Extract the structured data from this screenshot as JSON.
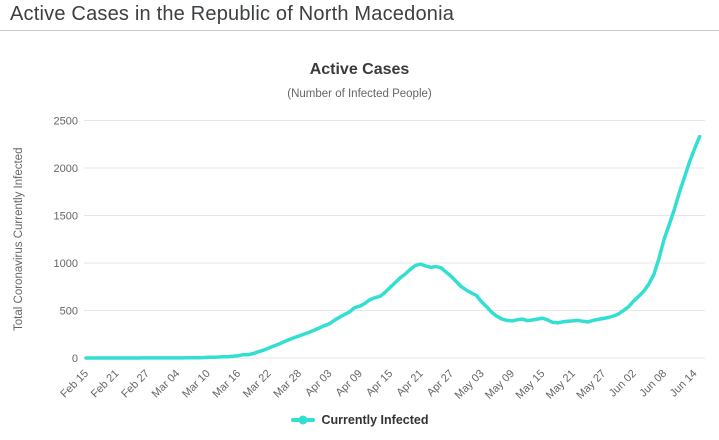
{
  "page": {
    "title": "Active Cases in the Republic of North Macedonia"
  },
  "colors": {
    "line": "#33DED2",
    "grid": "#E6E6E6",
    "tick_text": "#666666",
    "axis_title_text": "#666666",
    "chart_title_text": "#3A3A3A",
    "page_title_text": "#3C4043",
    "legend_text": "#333333",
    "divider": "#C9C9C9",
    "background": "#FFFFFF"
  },
  "legend": {
    "marker_icon": "line-with-dot-marker"
  },
  "chart_data": {
    "type": "line",
    "title": "Active Cases",
    "subtitle": "(Number of Infected People)",
    "xlabel": "",
    "ylabel": "Total Coronavirus Currently Infected",
    "legend_position": "bottom",
    "grid": "horizontal-only",
    "ylim": [
      0,
      2500
    ],
    "y_ticks": [
      0,
      500,
      1000,
      1500,
      2000,
      2500
    ],
    "x_tick_labels": [
      "Feb 15",
      "Feb 21",
      "Feb 27",
      "Mar 04",
      "Mar 10",
      "Mar 16",
      "Mar 22",
      "Mar 28",
      "Apr 03",
      "Apr 09",
      "Apr 15",
      "Apr 21",
      "Apr 27",
      "May 03",
      "May 09",
      "May 15",
      "May 21",
      "May 27",
      "Jun 02",
      "Jun 08",
      "Jun 14"
    ],
    "x_tick_every_n_points": 6,
    "x_label_rotation": -45,
    "x_start_label": "Feb 15",
    "series": [
      {
        "name": "Currently Infected",
        "values": [
          0,
          0,
          0,
          0,
          0,
          0,
          0,
          0,
          0,
          0,
          0,
          1,
          1,
          1,
          1,
          1,
          1,
          1,
          1,
          1,
          3,
          3,
          3,
          4,
          7,
          7,
          9,
          13,
          13,
          18,
          24,
          35,
          35,
          47,
          66,
          82,
          104,
          125,
          146,
          169,
          192,
          213,
          232,
          252,
          270,
          294,
          316,
          340,
          360,
          398,
          428,
          458,
          486,
          532,
          545,
          575,
          615,
          635,
          650,
          692,
          745,
          795,
          845,
          885,
          935,
          975,
          988,
          968,
          955,
          962,
          950,
          905,
          860,
          805,
          752,
          715,
          685,
          658,
          592,
          540,
          482,
          440,
          412,
          396,
          390,
          402,
          410,
          394,
          400,
          410,
          420,
          402,
          376,
          370,
          380,
          386,
          390,
          396,
          386,
          380,
          396,
          406,
          416,
          426,
          442,
          462,
          500,
          540,
          600,
          650,
          702,
          780,
          880,
          1050,
          1250,
          1400,
          1560,
          1740,
          1900,
          2060,
          2200,
          2330
        ]
      }
    ]
  }
}
